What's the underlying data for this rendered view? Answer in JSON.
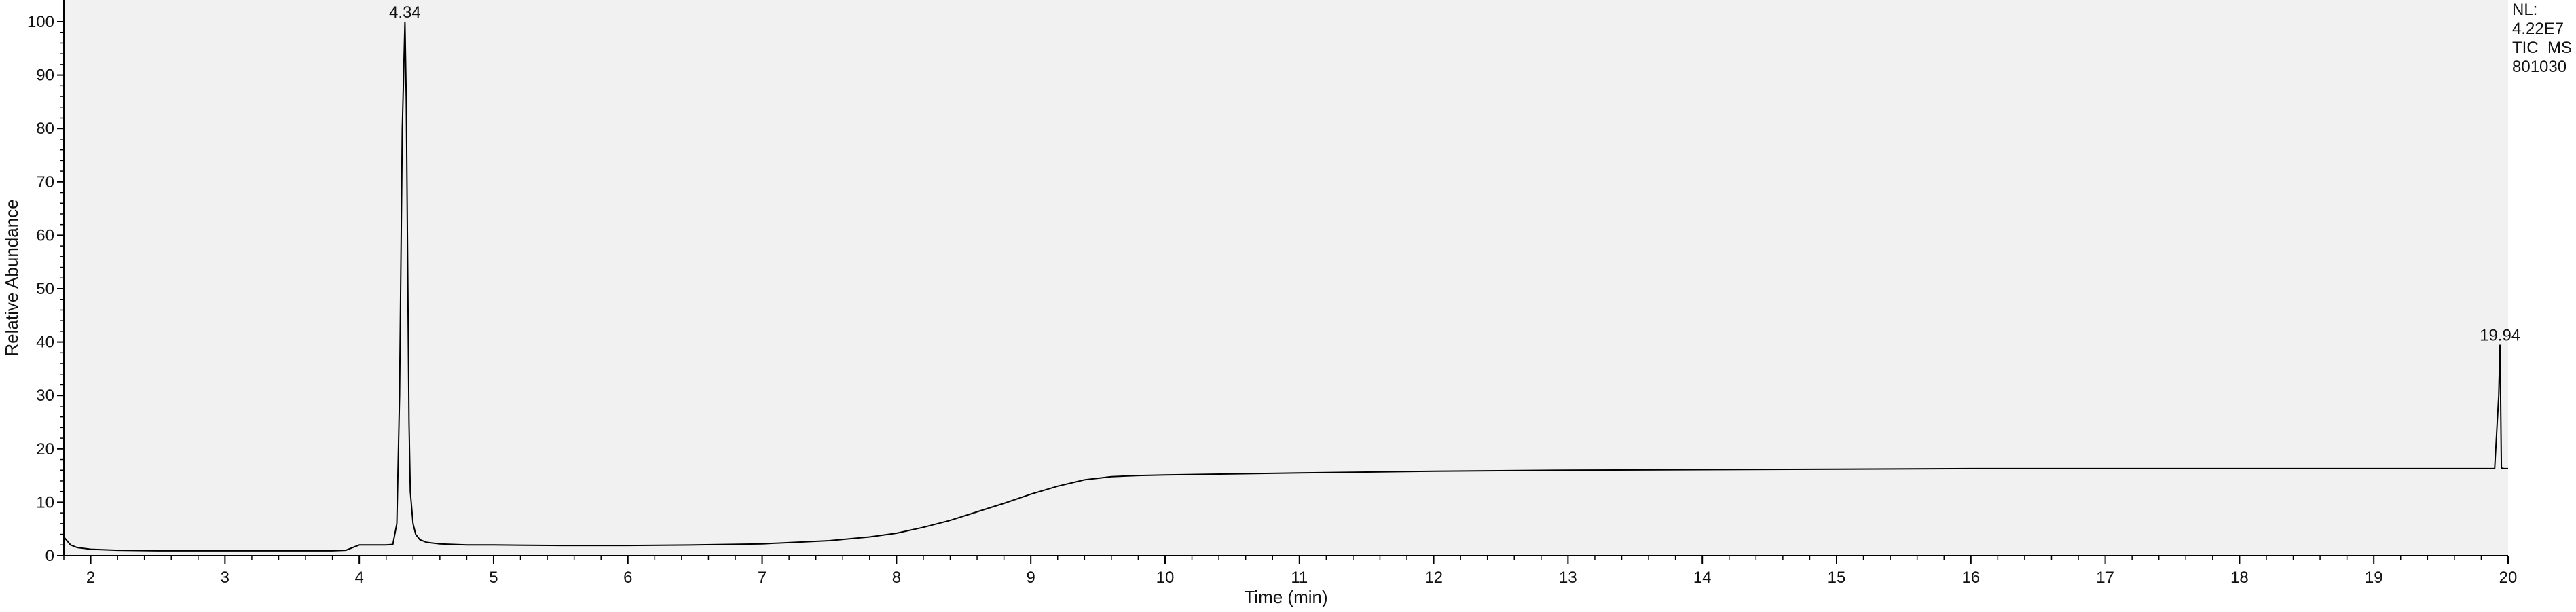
{
  "chart_data": {
    "type": "line",
    "title": "",
    "xlabel": "Time (min)",
    "ylabel": "Relative Abundance",
    "xlim": [
      1.8,
      20.0
    ],
    "ylim": [
      0,
      100
    ],
    "x_ticks": [
      2,
      3,
      4,
      5,
      6,
      7,
      8,
      9,
      10,
      11,
      12,
      13,
      14,
      15,
      16,
      17,
      18,
      19,
      20
    ],
    "y_ticks": [
      0,
      10,
      20,
      30,
      40,
      50,
      60,
      70,
      80,
      90,
      100
    ],
    "grid": false,
    "series": [
      {
        "x": [
          1.8,
          1.85,
          1.9,
          2.0,
          2.2,
          2.5,
          3.0,
          3.5,
          3.8,
          3.9,
          3.95,
          4.0,
          4.1,
          4.2,
          4.25,
          4.28,
          4.3,
          4.32,
          4.34,
          4.35,
          4.36,
          4.37,
          4.38,
          4.4,
          4.42,
          4.45,
          4.5,
          4.6,
          4.8,
          5.0,
          5.5,
          6.0,
          6.5,
          7.0,
          7.5,
          7.8,
          8.0,
          8.2,
          8.4,
          8.6,
          8.8,
          9.0,
          9.2,
          9.4,
          9.6,
          9.8,
          10.0,
          10.5,
          11.0,
          12.0,
          13.0,
          14.0,
          15.0,
          16.0,
          17.0,
          18.0,
          19.0,
          19.5,
          19.9,
          19.93,
          19.94,
          19.95,
          19.97,
          20.0
        ],
        "y": [
          3.5,
          2.0,
          1.5,
          1.2,
          1.0,
          0.9,
          0.9,
          0.9,
          0.9,
          1.0,
          1.5,
          2.0,
          2.0,
          2.0,
          2.1,
          6.0,
          30.0,
          80.0,
          100.0,
          85.0,
          55.0,
          25.0,
          12.0,
          6.0,
          4.0,
          3.0,
          2.5,
          2.2,
          2.0,
          2.0,
          1.9,
          1.9,
          2.0,
          2.2,
          2.8,
          3.5,
          4.2,
          5.3,
          6.6,
          8.2,
          9.8,
          11.5,
          13.0,
          14.2,
          14.8,
          15.0,
          15.1,
          15.3,
          15.5,
          15.8,
          16.0,
          16.1,
          16.2,
          16.3,
          16.3,
          16.3,
          16.3,
          16.3,
          16.3,
          30.0,
          39.5,
          16.4,
          16.3,
          16.3
        ]
      }
    ],
    "peak_labels": [
      {
        "x": 4.34,
        "y": 100,
        "text": "4.34"
      },
      {
        "x": 19.94,
        "y": 39.5,
        "text": "19.94"
      }
    ]
  },
  "info": {
    "line1": "NL:",
    "line2": "4.22E7",
    "line3": "TIC  MS",
    "line4": "801030"
  },
  "colors": {
    "plot_bg": "#f1f1f1",
    "trace": "#000000",
    "axis": "#000000"
  }
}
